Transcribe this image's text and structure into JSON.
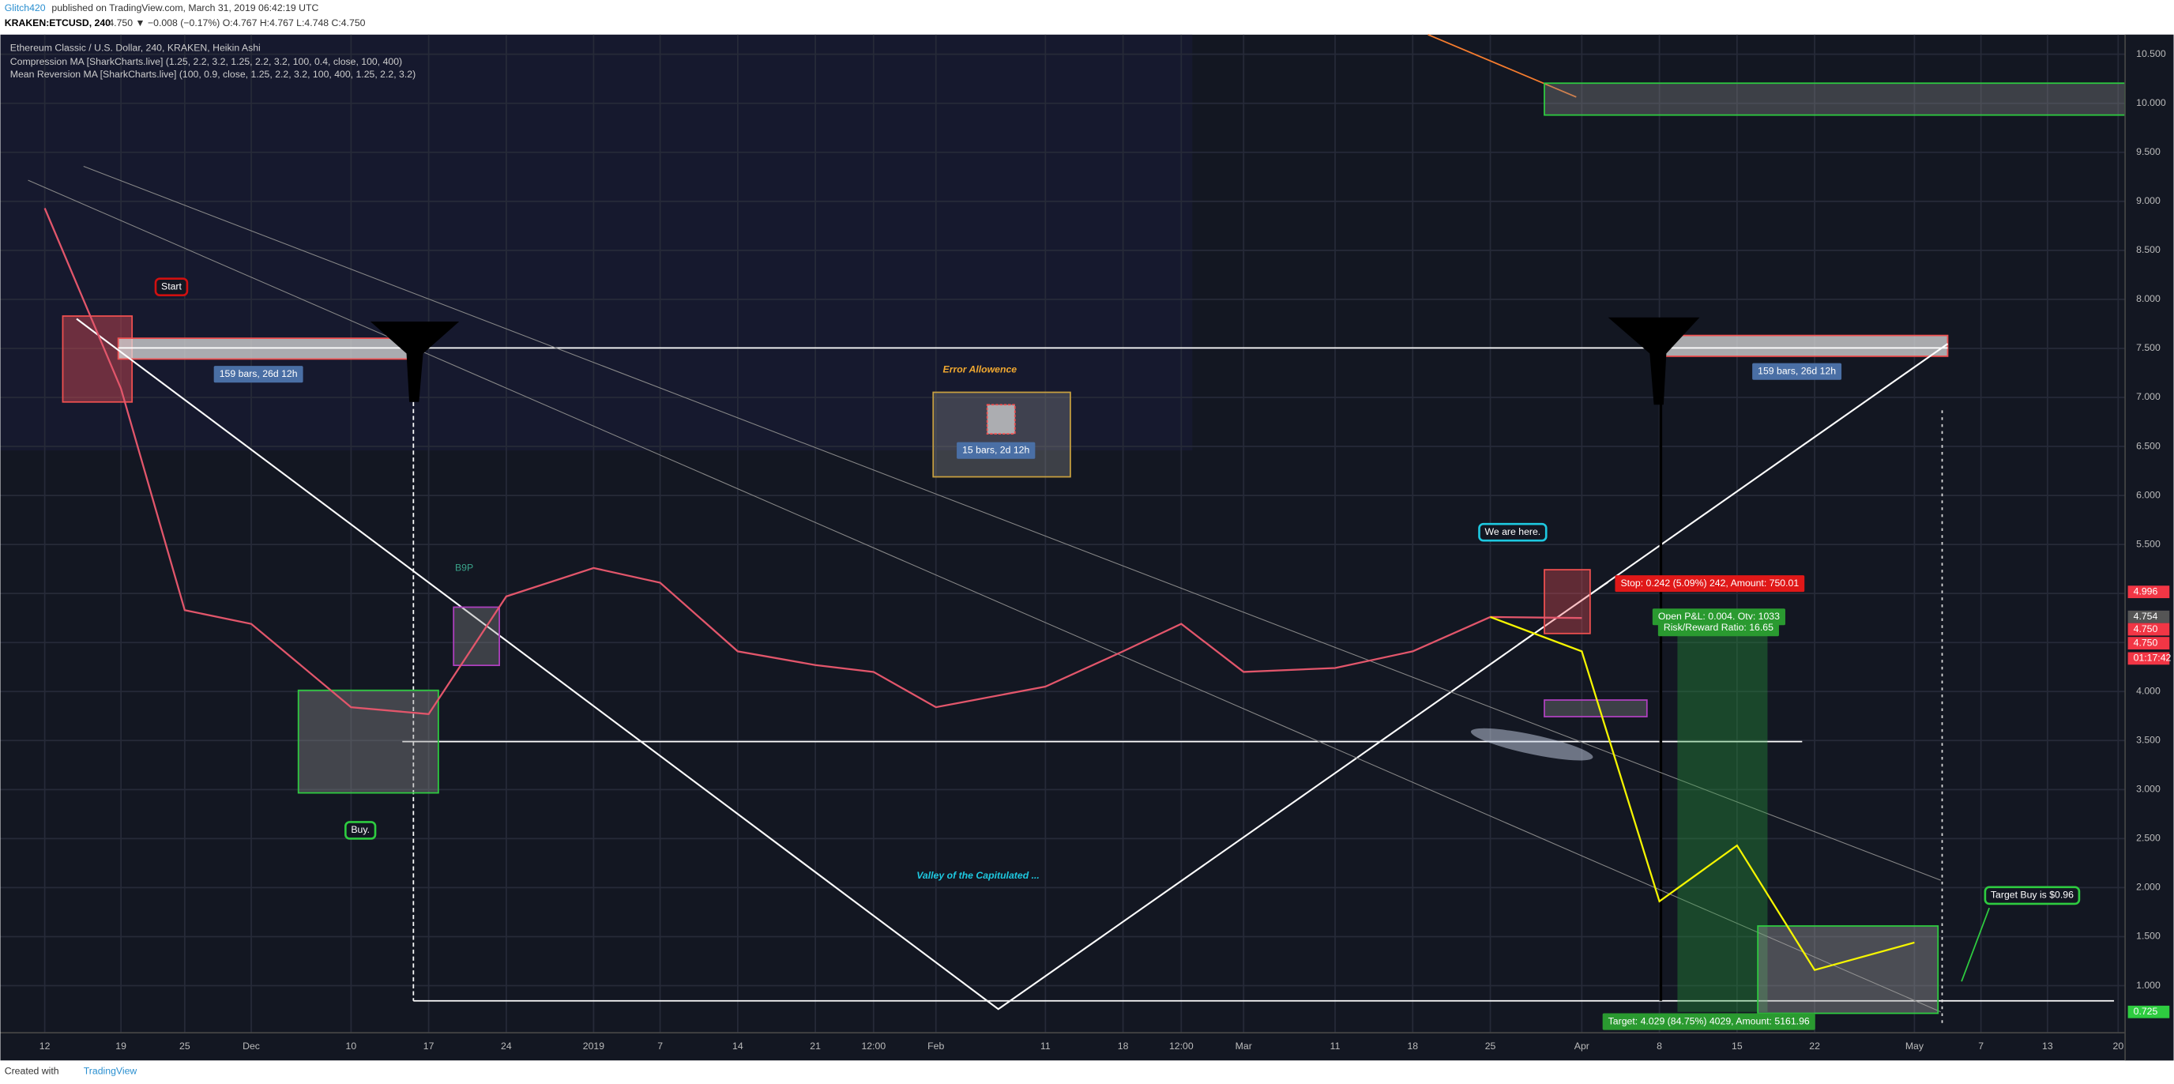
{
  "header": {
    "publisher": "Glitch420",
    "published": "published on TradingView.com, March 31, 2019 06:42:19 UTC",
    "symbol": "KRAKEN:ETCUSD, 240",
    "quote": "4.750 ▼ −0.008 (−0.17%) O:4.767 H:4.767 L:4.748 C:4.750"
  },
  "legend": [
    "Ethereum Classic / U.S. Dollar, 240, KRAKEN, Heikin Ashi",
    "Compression MA [SharkCharts.live] (1.25, 2.2, 3.2, 1.25, 2.2, 3.2, 100, 0.4, close, 100, 400)",
    "Mean Reversion MA [SharkCharts.live] (100, 0.9, close, 1.25, 2.2, 3.2, 100, 400, 1.25, 2.2, 3.2)"
  ],
  "chart_data": {
    "type": "line",
    "categories": [
      "12",
      "19",
      "25",
      "Dec",
      "10",
      "17",
      "24",
      "2019",
      "7",
      "14",
      "21",
      "12:00",
      "Feb",
      "11",
      "18",
      "12:00",
      "Mar",
      "11",
      "18",
      "25",
      "Apr",
      "8",
      "15",
      "22",
      "May",
      "7",
      "13",
      "20"
    ],
    "series": [
      {
        "color": "#e2566b",
        "values": [
          8.93,
          7.09,
          4.83,
          4.69,
          3.84,
          3.77,
          4.97,
          5.26,
          5.11,
          4.41,
          4.27,
          4.2,
          3.84,
          4.05,
          4.41,
          4.69,
          4.2,
          4.24,
          4.41,
          4.76,
          4.75,
          null,
          null,
          null,
          null,
          null,
          null,
          null
        ]
      },
      {
        "color": "#f5f500",
        "values": [
          null,
          null,
          null,
          null,
          null,
          null,
          null,
          null,
          null,
          null,
          null,
          null,
          null,
          null,
          null,
          null,
          null,
          null,
          null,
          4.76,
          4.41,
          1.86,
          2.43,
          1.16,
          1.44,
          null,
          null,
          null
        ]
      }
    ],
    "ylim": [
      0.52,
      10.7
    ],
    "yticks": [
      {
        "value": 1,
        "label": "1.000"
      },
      {
        "value": 1.5,
        "label": "1.500"
      },
      {
        "value": 2,
        "label": "2.000"
      },
      {
        "value": 2.5,
        "label": "2.500"
      },
      {
        "value": 3,
        "label": "3.000"
      },
      {
        "value": 3.5,
        "label": "3.500"
      },
      {
        "value": 4,
        "label": "4.000"
      },
      {
        "value": 4.5,
        "label": "4.500"
      },
      {
        "value": 5,
        "label": "5.000"
      },
      {
        "value": 5.5,
        "label": "5.500"
      },
      {
        "value": 6,
        "label": "6.000"
      },
      {
        "value": 6.5,
        "label": "6.500"
      },
      {
        "value": 7,
        "label": "7.000"
      },
      {
        "value": 7.5,
        "label": "7.500"
      },
      {
        "value": 8,
        "label": "8.000"
      },
      {
        "value": 8.5,
        "label": "8.500"
      },
      {
        "value": 9,
        "label": "9.000"
      },
      {
        "value": 9.5,
        "label": "9.500"
      },
      {
        "value": 10,
        "label": "10.000"
      },
      {
        "value": 10.5,
        "label": "10.500"
      }
    ],
    "grid": true,
    "axis_badges": [
      "4.996",
      "4.754",
      "4.750",
      "4.750",
      "01:17:42",
      "0.725"
    ],
    "annotations": [
      "Start",
      "159 bars, 26d 12h",
      "159 bars, 26d 12h",
      "Error Allowence",
      "15 bars, 2d 12h",
      "B9P",
      "Buy.",
      "Valley of the Capitulated ...",
      "We are here.",
      "Stop: 0.242 (5.09%) 242, Amount: 750.01",
      "Open P&L: 0.004, Qty: 1033",
      "Risk/Reward Ratio: 16.65",
      "Target: 4.029 (84.75%) 4029, Amount: 5161.96",
      "Target Buy is $0.96"
    ]
  },
  "footer": {
    "created": "Created with",
    "brand": "TradingView"
  }
}
